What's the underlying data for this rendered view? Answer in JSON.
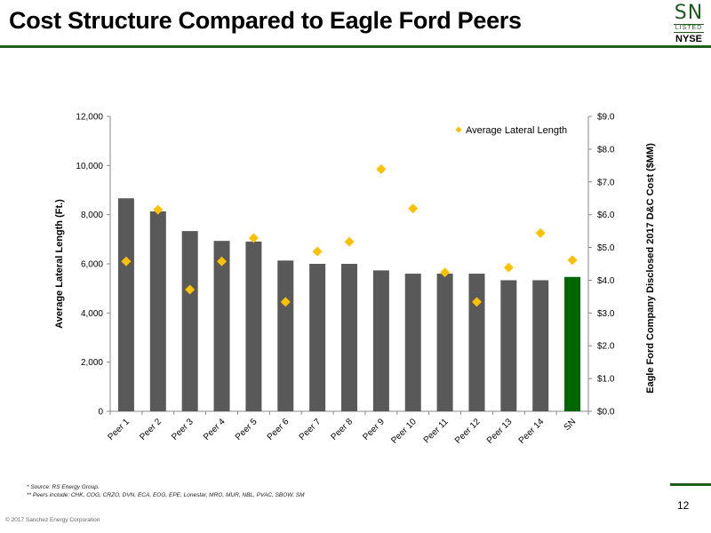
{
  "header": {
    "title": "Cost Structure Compared to Eagle Ford Peers"
  },
  "logo": {
    "ticker": "SN",
    "listed": "LISTED",
    "exchange": "NYSE",
    "color": "#1e5c1e"
  },
  "chart_data": {
    "type": "bar",
    "categories": [
      "Peer 1",
      "Peer 2",
      "Peer 3",
      "Peer 4",
      "Peer 5",
      "Peer 6",
      "Peer 7",
      "Peer 8",
      "Peer 9",
      "Peer 10",
      "Peer 11",
      "Peer 12",
      "Peer 13",
      "Peer 14",
      "SN"
    ],
    "series": [
      {
        "name": "",
        "type": "bar",
        "axis": "right",
        "values": [
          6.5,
          6.1,
          5.5,
          5.2,
          5.18,
          4.6,
          4.5,
          4.5,
          4.3,
          4.2,
          4.2,
          4.2,
          4.0,
          4.0,
          4.1
        ],
        "colors": [
          "#595959",
          "#595959",
          "#595959",
          "#595959",
          "#595959",
          "#595959",
          "#595959",
          "#595959",
          "#595959",
          "#595959",
          "#595959",
          "#595959",
          "#595959",
          "#595959",
          "#006600"
        ]
      },
      {
        "name": "Average Lateral Length",
        "type": "scatter",
        "axis": "left",
        "values": [
          6100,
          8200,
          4950,
          6100,
          7050,
          4450,
          6500,
          6900,
          9850,
          8250,
          5650,
          4450,
          5850,
          7250,
          6150
        ],
        "color": "#ffc000"
      }
    ],
    "y_left": {
      "label": "Average Lateral Length (Ft.)",
      "ylim": [
        0,
        12000
      ],
      "ticks": [
        "0",
        "2,000",
        "4,000",
        "6,000",
        "8,000",
        "10,000",
        "12,000"
      ]
    },
    "y_right": {
      "label": "Eagle Ford Company Disclosed 2017 D&C Cost ($MM)",
      "ylim": [
        0,
        9
      ],
      "ticks": [
        "$0.0",
        "$1.0",
        "$2.0",
        "$3.0",
        "$4.0",
        "$5.0",
        "$6.0",
        "$7.0",
        "$8.0",
        "$9.0"
      ]
    },
    "legend_position": "top-right",
    "grid": false
  },
  "footnotes": {
    "source": "* Source: RS Energy Group.",
    "peers": "** Peers include: CHK, COG, CRZO, DVN, ECA, EOG, EPE, Lonestar, MRO, MUR, NBL, PVAC, SBOW, SM"
  },
  "page_number": "12",
  "copyright": "© 2017 Sanchez Energy Corporation"
}
